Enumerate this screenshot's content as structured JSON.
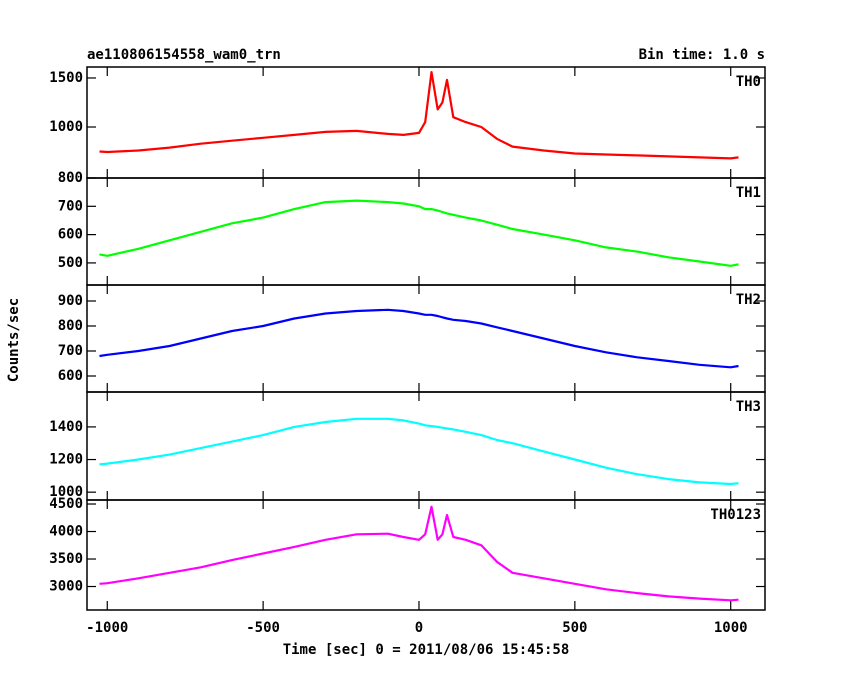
{
  "chart_data": [
    {
      "type": "line",
      "title": "ae110806154558_wam0_trn",
      "subtitle": "Bin time: 1.0 s",
      "x": [
        -1025,
        -1000,
        -900,
        -800,
        -700,
        -600,
        -500,
        -400,
        -300,
        -200,
        -100,
        -50,
        0,
        20,
        40,
        60,
        75,
        90,
        110,
        150,
        200,
        250,
        300,
        400,
        500,
        600,
        700,
        800,
        900,
        1000,
        1025
      ],
      "series": [
        {
          "name": "TH0",
          "color": "#ff0000",
          "values": [
            750,
            745,
            760,
            790,
            830,
            860,
            890,
            920,
            950,
            960,
            930,
            920,
            940,
            1050,
            1560,
            1180,
            1250,
            1480,
            1100,
            1050,
            1000,
            880,
            800,
            760,
            730,
            720,
            710,
            700,
            690,
            680,
            690
          ]
        }
      ],
      "xlim": [
        -1065,
        1110
      ],
      "xticks": [
        -1000,
        -500,
        0,
        500,
        1000
      ],
      "ylim": [
        480,
        1612
      ],
      "yticks": [
        1000,
        1500
      ]
    },
    {
      "type": "line",
      "x": [
        -1025,
        -1000,
        -900,
        -800,
        -700,
        -600,
        -500,
        -400,
        -300,
        -200,
        -100,
        -50,
        0,
        20,
        40,
        60,
        75,
        90,
        110,
        150,
        200,
        250,
        300,
        400,
        500,
        600,
        700,
        800,
        900,
        1000,
        1025
      ],
      "series": [
        {
          "name": "TH1",
          "color": "#00ff00",
          "values": [
            530,
            525,
            550,
            580,
            610,
            640,
            660,
            690,
            715,
            720,
            715,
            710,
            700,
            690,
            690,
            685,
            680,
            675,
            670,
            660,
            650,
            635,
            620,
            600,
            580,
            555,
            540,
            520,
            505,
            490,
            495
          ]
        }
      ],
      "xlim": [
        -1065,
        1110
      ],
      "xticks": [
        -1000,
        -500,
        0,
        500,
        1000
      ],
      "ylim": [
        422,
        800
      ],
      "yticks": [
        500,
        600,
        700,
        800
      ]
    },
    {
      "type": "line",
      "y_label": "Counts/sec",
      "x": [
        -1025,
        -1000,
        -900,
        -800,
        -700,
        -600,
        -500,
        -400,
        -300,
        -200,
        -100,
        -50,
        0,
        20,
        40,
        60,
        75,
        90,
        110,
        150,
        200,
        250,
        300,
        400,
        500,
        600,
        700,
        800,
        900,
        1000,
        1025
      ],
      "series": [
        {
          "name": "TH2",
          "color": "#0000ff",
          "values": [
            680,
            685,
            700,
            720,
            750,
            780,
            800,
            830,
            850,
            860,
            865,
            860,
            850,
            845,
            845,
            840,
            835,
            830,
            825,
            820,
            810,
            795,
            780,
            750,
            720,
            695,
            675,
            660,
            645,
            635,
            640
          ]
        }
      ],
      "xlim": [
        -1065,
        1110
      ],
      "xticks": [
        -1000,
        -500,
        0,
        500,
        1000
      ],
      "ylim": [
        536,
        964
      ],
      "yticks": [
        600,
        700,
        800,
        900
      ]
    },
    {
      "type": "line",
      "x": [
        -1025,
        -1000,
        -900,
        -800,
        -700,
        -600,
        -500,
        -400,
        -300,
        -200,
        -100,
        -50,
        0,
        20,
        40,
        60,
        75,
        90,
        110,
        150,
        200,
        250,
        300,
        400,
        500,
        600,
        700,
        800,
        900,
        1000,
        1025
      ],
      "series": [
        {
          "name": "TH3",
          "color": "#00ffff",
          "values": [
            1170,
            1175,
            1200,
            1230,
            1270,
            1310,
            1350,
            1400,
            1430,
            1450,
            1450,
            1440,
            1420,
            1410,
            1405,
            1400,
            1395,
            1390,
            1385,
            1370,
            1350,
            1320,
            1300,
            1250,
            1200,
            1150,
            1110,
            1080,
            1060,
            1050,
            1055
          ]
        }
      ],
      "xlim": [
        -1065,
        1110
      ],
      "xticks": [
        -1000,
        -500,
        0,
        500,
        1000
      ],
      "ylim": [
        952,
        1614
      ],
      "yticks": [
        1000,
        1200,
        1400
      ]
    },
    {
      "type": "line",
      "x_label": "Time [sec] 0 = 2011/08/06 15:45:58",
      "x": [
        -1025,
        -1000,
        -900,
        -800,
        -700,
        -600,
        -500,
        -400,
        -300,
        -200,
        -100,
        -50,
        0,
        20,
        40,
        60,
        75,
        90,
        110,
        150,
        200,
        250,
        300,
        400,
        500,
        600,
        700,
        800,
        900,
        1000,
        1025
      ],
      "series": [
        {
          "name": "TH0123",
          "color": "#ff00ff",
          "values": [
            3050,
            3060,
            3150,
            3250,
            3350,
            3480,
            3600,
            3720,
            3850,
            3950,
            3960,
            3900,
            3850,
            3950,
            4450,
            3850,
            3950,
            4300,
            3900,
            3850,
            3750,
            3450,
            3250,
            3150,
            3050,
            2950,
            2880,
            2820,
            2780,
            2750,
            2760
          ]
        }
      ],
      "xlim": [
        -1065,
        1110
      ],
      "xticks": [
        -1000,
        -500,
        0,
        500,
        1000
      ],
      "ylim": [
        2573,
        4573
      ],
      "yticks": [
        3000,
        3500,
        4000,
        4500
      ]
    }
  ]
}
